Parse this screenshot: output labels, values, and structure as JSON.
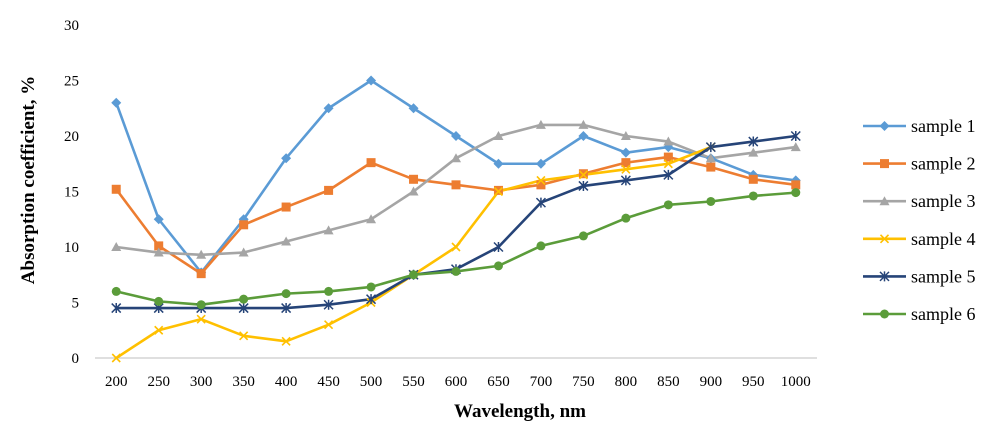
{
  "chart_data": {
    "type": "line",
    "title": "",
    "xlabel": "Wavelength, nm",
    "ylabel": "Absorption coefficient, %",
    "categories": [
      "200",
      "250",
      "300",
      "350",
      "400",
      "450",
      "500",
      "550",
      "600",
      "650",
      "700",
      "750",
      "800",
      "850",
      "900",
      "950",
      "1000"
    ],
    "ylim": [
      0,
      30
    ],
    "yticks": [
      "0",
      "5",
      "10",
      "15",
      "20",
      "25",
      "30"
    ],
    "grid": false,
    "legend_position": "right",
    "series": [
      {
        "name": "sample 1",
        "color": "#5B9BD5",
        "marker": "diamond",
        "values": [
          23,
          12.5,
          7.7,
          12.5,
          18,
          22.5,
          25,
          22.5,
          20,
          17.5,
          17.5,
          20,
          18.5,
          19,
          18,
          16.5,
          16
        ]
      },
      {
        "name": "sample 2",
        "color": "#ED7D31",
        "marker": "square",
        "values": [
          15.2,
          10.1,
          7.6,
          12,
          13.6,
          15.1,
          17.6,
          16.1,
          15.6,
          15.1,
          15.6,
          16.6,
          17.6,
          18.1,
          17.2,
          16.1,
          15.6
        ]
      },
      {
        "name": "sample 3",
        "color": "#A5A5A5",
        "marker": "triangle",
        "values": [
          10,
          9.5,
          9.3,
          9.5,
          10.5,
          11.5,
          12.5,
          15,
          18,
          20,
          21,
          21,
          20,
          19.5,
          18,
          18.5,
          19
        ]
      },
      {
        "name": "sample 4",
        "color": "#FFC000",
        "marker": "x",
        "values": [
          0,
          2.5,
          3.5,
          2,
          1.5,
          3,
          5,
          7.5,
          10,
          15,
          16,
          16.5,
          17,
          17.5,
          19,
          null,
          null
        ]
      },
      {
        "name": "sample 5",
        "color": "#264478",
        "marker": "star",
        "values": [
          4.5,
          4.5,
          4.5,
          4.5,
          4.5,
          4.8,
          5.3,
          7.5,
          8,
          10,
          14,
          15.5,
          16,
          16.5,
          19,
          19.5,
          20
        ]
      },
      {
        "name": "sample 6",
        "color": "#5B9C3A",
        "marker": "circle",
        "values": [
          6,
          5.1,
          4.8,
          5.3,
          5.8,
          6,
          6.4,
          7.5,
          7.8,
          8.3,
          10.1,
          11,
          12.6,
          13.8,
          14.1,
          14.6,
          14.9
        ]
      }
    ]
  }
}
